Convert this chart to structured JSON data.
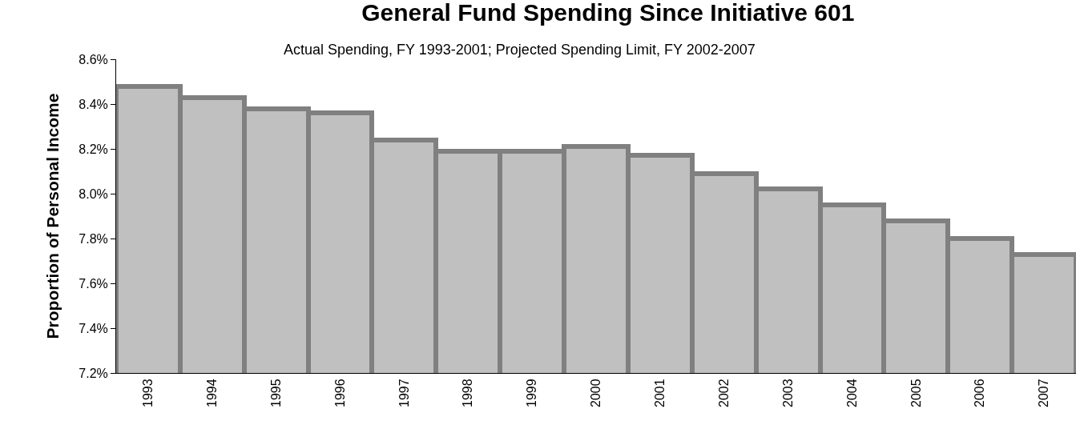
{
  "chart_data": {
    "type": "bar",
    "title": "General Fund Spending Since Initiative 601",
    "subtitle": "Actual Spending, FY 1993-2001; Projected Spending Limit, FY 2002-2007",
    "ylabel": "Proportion of Personal Income",
    "categories": [
      "1993",
      "1994",
      "1995",
      "1996",
      "1997",
      "1998",
      "1999",
      "2000",
      "2001",
      "2002",
      "2003",
      "2004",
      "2005",
      "2006",
      "2007"
    ],
    "values": [
      8.48,
      8.43,
      8.38,
      8.36,
      8.24,
      8.19,
      8.19,
      8.21,
      8.17,
      8.09,
      8.02,
      7.95,
      7.88,
      7.8,
      7.73
    ],
    "color": "#c0c0c0",
    "ylim": [
      7.2,
      8.6
    ],
    "yticks": [
      {
        "value": 7.2,
        "label": "7.2%"
      },
      {
        "value": 7.4,
        "label": "7.4%"
      },
      {
        "value": 7.6,
        "label": "7.6%"
      },
      {
        "value": 7.8,
        "label": "7.8%"
      },
      {
        "value": 8.0,
        "label": "8.0%"
      },
      {
        "value": 8.2,
        "label": "8.2%"
      },
      {
        "value": 8.4,
        "label": "8.4%"
      },
      {
        "value": 8.6,
        "label": "8.6%"
      }
    ],
    "grid": false,
    "legend": false
  }
}
